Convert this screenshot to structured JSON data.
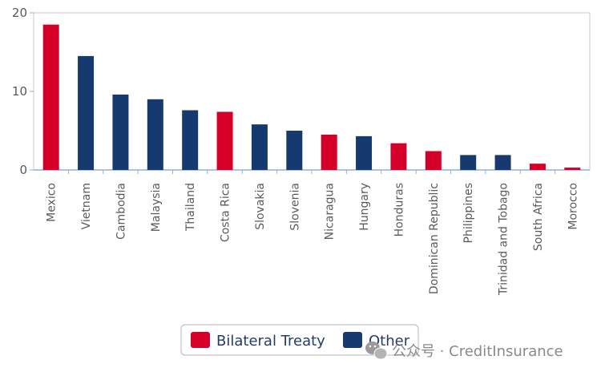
{
  "chart_data": {
    "type": "bar",
    "categories": [
      "Mexico",
      "Vietnam",
      "Cambodia",
      "Malaysia",
      "Thailand",
      "Costa Rica",
      "Slovakia",
      "Slovenia",
      "Nicaragua",
      "Hungary",
      "Honduras",
      "Dominican Republic",
      "Philippines",
      "Trinidad and Tobago",
      "South Africa",
      "Morocco"
    ],
    "values": [
      18.5,
      14.5,
      9.6,
      9.0,
      7.6,
      7.4,
      5.8,
      5.0,
      4.5,
      4.3,
      3.4,
      2.4,
      1.9,
      1.9,
      0.8,
      0.3
    ],
    "groups": [
      "Bilateral Treaty",
      "Other",
      "Other",
      "Other",
      "Other",
      "Bilateral Treaty",
      "Other",
      "Other",
      "Bilateral Treaty",
      "Other",
      "Bilateral Treaty",
      "Bilateral Treaty",
      "Other",
      "Other",
      "Bilateral Treaty",
      "Bilateral Treaty"
    ],
    "series": [
      {
        "name": "Bilateral Treaty",
        "color": "#d4002a"
      },
      {
        "name": "Other",
        "color": "#163a70"
      }
    ],
    "ylim": [
      0,
      20
    ],
    "yticks": [
      0,
      10,
      20
    ],
    "grid": false,
    "legend_position": "bottom-center",
    "title": "",
    "xlabel": "",
    "ylabel": ""
  },
  "watermark": {
    "text": "公众号 · CreditInsurance"
  }
}
